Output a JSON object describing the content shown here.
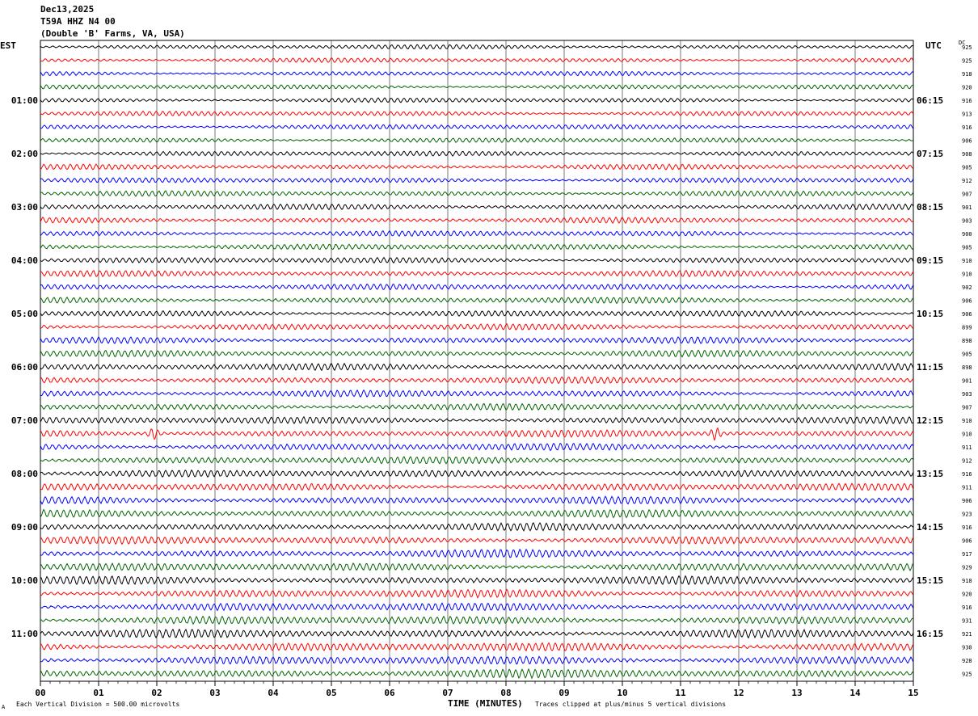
{
  "header": {
    "date": "Dec13,2025",
    "station": "T59A HHZ N4 00",
    "location": "(Double 'B' Farms, VA, USA)"
  },
  "labels": {
    "left_tz": "EST",
    "right_tz": "UTC",
    "dc_header": "DC",
    "scale_note": "Each Vertical Division =  500.00 microvolts",
    "clip_note": "Traces clipped at plus/minus 5 vertical divisions",
    "corner_mark": "A"
  },
  "chart_data": {
    "type": "line",
    "xlabel": "TIME (MINUTES)",
    "xlim": [
      0,
      15
    ],
    "x_ticks": [
      "00",
      "01",
      "02",
      "03",
      "04",
      "05",
      "06",
      "07",
      "08",
      "09",
      "10",
      "11",
      "12",
      "13",
      "14",
      "15"
    ],
    "series_colors": [
      "#000000",
      "#ff0000",
      "#0000ff",
      "#006400"
    ],
    "rows_per_hour": 4,
    "left_hour_labels": [
      "01:00",
      "02:00",
      "03:00",
      "04:00",
      "05:00",
      "06:00",
      "07:00",
      "08:00",
      "09:00",
      "10:00",
      "11:00"
    ],
    "right_hour_labels": [
      "06:15",
      "07:15",
      "08:15",
      "09:15",
      "10:15",
      "11:15",
      "12:15",
      "13:15",
      "14:15",
      "15:15",
      "16:15"
    ],
    "dc_offsets": [
      925,
      925,
      918,
      920,
      916,
      913,
      916,
      906,
      908,
      905,
      912,
      907,
      901,
      903,
      900,
      905,
      910,
      910,
      902,
      906,
      906,
      899,
      898,
      905,
      898,
      901,
      903,
      907,
      910,
      910,
      911,
      912,
      916,
      911,
      906,
      923,
      916,
      906,
      917,
      929,
      918,
      920,
      916,
      931,
      921,
      930,
      928,
      925
    ],
    "events": [
      {
        "row": 29,
        "minute": 1.95,
        "label": ""
      },
      {
        "row": 29,
        "minute": 11.6,
        "label": ""
      }
    ]
  }
}
